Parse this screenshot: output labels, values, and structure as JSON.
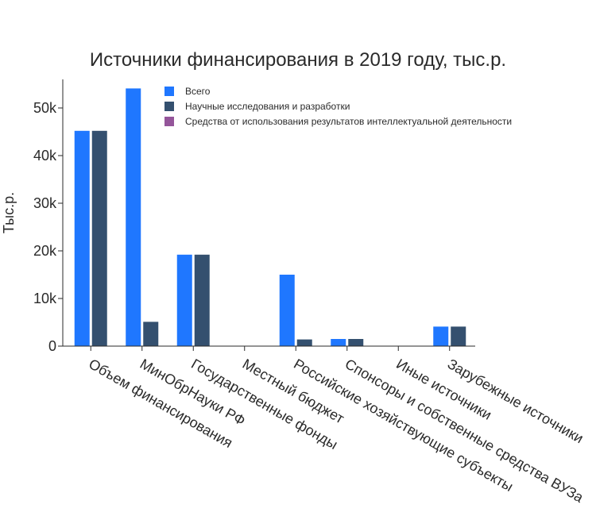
{
  "chart_data": {
    "type": "bar",
    "title": "Источники финансирования в 2019 году, тыс.р.",
    "xlabel": "",
    "ylabel": "Тыс.р.",
    "ylim": [
      0,
      56000
    ],
    "yticks": [
      0,
      10000,
      20000,
      30000,
      40000,
      50000
    ],
    "ytick_labels": [
      "0",
      "10k",
      "20k",
      "30k",
      "40k",
      "50k"
    ],
    "legend_position": "top-right",
    "categories": [
      "Объем финансирования",
      "МинОбрНауки РФ",
      "Государственные фонды",
      "Местный бюджет",
      "Российские хозяйствующие субъекты",
      "Спонсоры и собственные средства ВУЗа",
      "Иные источники",
      "Зарубежные источники"
    ],
    "series": [
      {
        "name": "Всего",
        "color": "#1f77ff",
        "values": [
          45200,
          54100,
          19200,
          0,
          15000,
          1500,
          0,
          4100
        ]
      },
      {
        "name": "Научные исследования и разработки",
        "color": "#34506f",
        "values": [
          45200,
          5100,
          19200,
          0,
          1400,
          1500,
          0,
          4100
        ]
      },
      {
        "name": "Средства от использования результатов интеллектуальной деятельности",
        "color": "#94559a",
        "values": [
          0,
          0,
          0,
          0,
          0,
          0,
          0,
          0
        ]
      }
    ]
  }
}
